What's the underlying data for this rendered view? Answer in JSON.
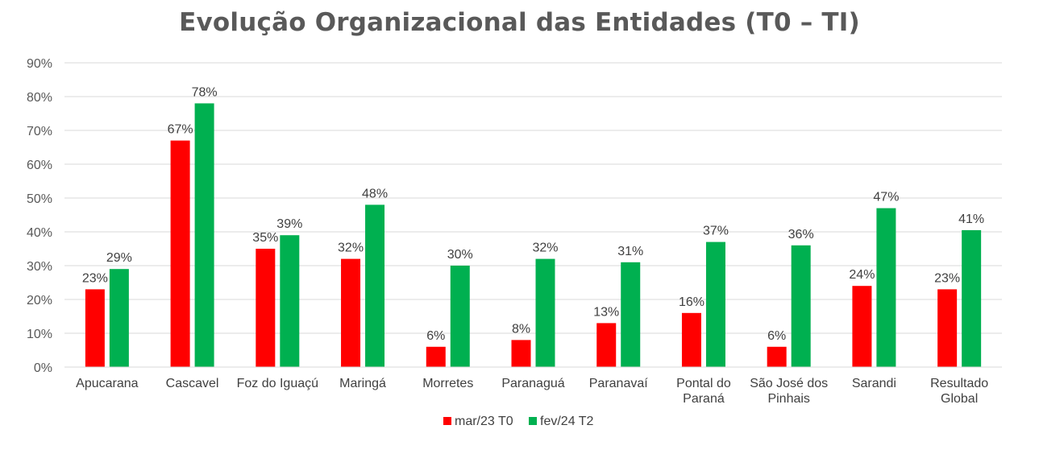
{
  "chart_data": {
    "type": "bar",
    "title": "Evolução Organizacional das Entidades (T0 – TI)",
    "xlabel": "",
    "ylabel": "",
    "ylim": [
      0,
      90
    ],
    "yticks": [
      "0%",
      "10%",
      "20%",
      "30%",
      "40%",
      "50%",
      "60%",
      "70%",
      "80%",
      "90%"
    ],
    "grid": true,
    "legend_position": "bottom",
    "categories": [
      [
        "Apucarana"
      ],
      [
        "Cascavel"
      ],
      [
        "Foz do Iguaçú"
      ],
      [
        "Maringá"
      ],
      [
        "Morretes"
      ],
      [
        "Paranaguá"
      ],
      [
        "Paranavaí"
      ],
      [
        "Pontal do",
        "Paraná"
      ],
      [
        "São José dos",
        "Pinhais"
      ],
      [
        "Sarandi"
      ],
      [
        "Resultado",
        "Global"
      ]
    ],
    "series": [
      {
        "name": "mar/23 T0",
        "color": "#ff0000",
        "values": [
          23,
          67,
          35,
          32,
          6,
          8,
          13,
          16,
          6,
          24,
          23
        ],
        "labels": [
          "23%",
          "67%",
          "35%",
          "32%",
          "6%",
          "8%",
          "13%",
          "16%",
          "6%",
          "24%",
          "23%"
        ]
      },
      {
        "name": "fev/24 T2",
        "color": "#00b050",
        "values": [
          29,
          78,
          39,
          48,
          30,
          32,
          31,
          37,
          36,
          47,
          40.5
        ],
        "labels": [
          "29%",
          "78%",
          "39%",
          "48%",
          "30%",
          "32%",
          "31%",
          "37%",
          "36%",
          "47%",
          "41%"
        ]
      }
    ]
  }
}
